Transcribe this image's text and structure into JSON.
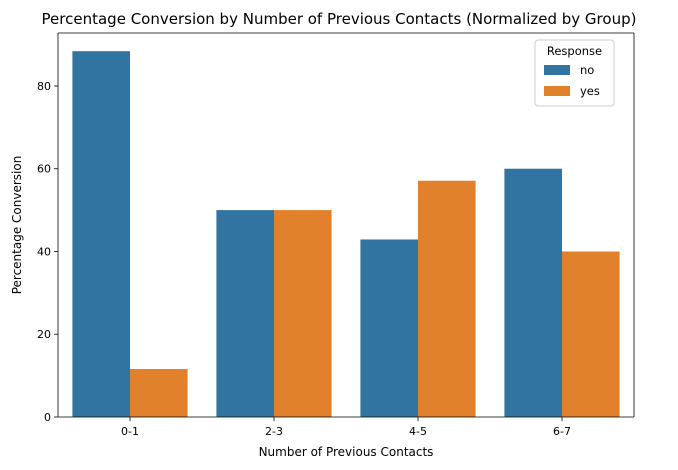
{
  "chart_data": {
    "type": "bar",
    "title": "Percentage Conversion by Number of Previous Contacts (Normalized by Group)",
    "xlabel": "Number of Previous Contacts",
    "ylabel": "Percentage Conversion",
    "categories": [
      "0-1",
      "2-3",
      "4-5",
      "6-7"
    ],
    "series": [
      {
        "name": "no",
        "values": [
          88.4,
          50.0,
          42.9,
          60.0
        ],
        "color": "#3274a1"
      },
      {
        "name": "yes",
        "values": [
          11.6,
          50.0,
          57.1,
          40.0
        ],
        "color": "#e1812c"
      }
    ],
    "ylim": [
      0,
      92.8
    ],
    "yticks": [
      0,
      20,
      40,
      60,
      80
    ],
    "grid": false,
    "legend": {
      "title": "Response",
      "placement": "top-right"
    }
  }
}
